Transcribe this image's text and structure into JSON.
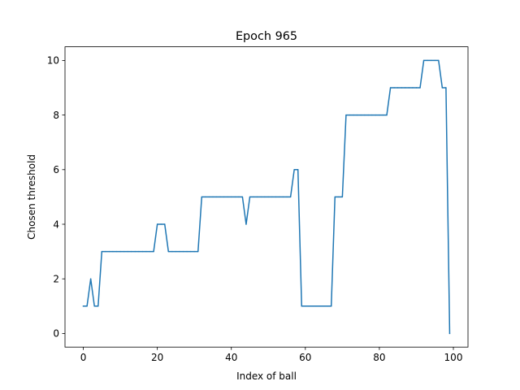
{
  "chart_data": {
    "type": "line",
    "title": "Epoch 965",
    "xlabel": "Index of ball",
    "ylabel": "Chosen threshold",
    "xlim": [
      -4.95,
      103.95
    ],
    "ylim": [
      -0.5,
      10.5
    ],
    "xticks": [
      0,
      20,
      40,
      60,
      80,
      100
    ],
    "yticks": [
      0,
      2,
      4,
      6,
      8,
      10
    ],
    "grid": false,
    "legend": "none",
    "color": "#1f77b4",
    "series": [
      {
        "x": [
          0,
          1,
          2,
          3,
          4,
          5,
          6,
          7,
          8,
          9,
          10,
          11,
          12,
          13,
          14,
          15,
          16,
          17,
          18,
          19,
          20,
          21,
          22,
          23,
          24,
          25,
          26,
          27,
          28,
          29,
          30,
          31,
          32,
          33,
          34,
          35,
          36,
          37,
          38,
          39,
          40,
          41,
          42,
          43,
          44,
          45,
          46,
          47,
          48,
          49,
          50,
          51,
          52,
          53,
          54,
          55,
          56,
          57,
          58,
          59,
          60,
          61,
          62,
          63,
          64,
          65,
          66,
          67,
          68,
          69,
          70,
          71,
          72,
          73,
          74,
          75,
          76,
          77,
          78,
          79,
          80,
          81,
          82,
          83,
          84,
          85,
          86,
          87,
          88,
          89,
          90,
          91,
          92,
          93,
          94,
          95,
          96,
          97,
          98,
          99
        ],
        "values": [
          1,
          1,
          2,
          1,
          1,
          3,
          3,
          3,
          3,
          3,
          3,
          3,
          3,
          3,
          3,
          3,
          3,
          3,
          3,
          3,
          4,
          4,
          4,
          3,
          3,
          3,
          3,
          3,
          3,
          3,
          3,
          3,
          5,
          5,
          5,
          5,
          5,
          5,
          5,
          5,
          5,
          5,
          5,
          5,
          4,
          5,
          5,
          5,
          5,
          5,
          5,
          5,
          5,
          5,
          5,
          5,
          5,
          6,
          6,
          1,
          1,
          1,
          1,
          1,
          1,
          1,
          1,
          1,
          5,
          5,
          5,
          8,
          8,
          8,
          8,
          8,
          8,
          8,
          8,
          8,
          8,
          8,
          8,
          9,
          9,
          9,
          9,
          9,
          9,
          9,
          9,
          9,
          10,
          10,
          10,
          10,
          10,
          9,
          9,
          0
        ]
      }
    ]
  }
}
